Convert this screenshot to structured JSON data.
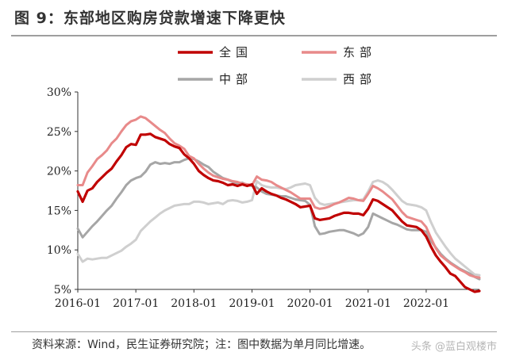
{
  "header": {
    "title": "图 9：东部地区购房贷款增速下降更快"
  },
  "footer": {
    "source": "资料来源：Wind，民生证券研究院；注：图中数据为单月同比增速。",
    "watermark": "头条 @蓝白观楼市"
  },
  "colors": {
    "national": "#c00000",
    "east": "#e88a8a",
    "central": "#a6a6a6",
    "west": "#cfcfcf"
  },
  "chart_data": {
    "type": "line",
    "title": "",
    "xlabel": "",
    "ylabel": "",
    "ylim": [
      5,
      30
    ],
    "yticks": [
      "5%",
      "10%",
      "15%",
      "20%",
      "25%",
      "30%"
    ],
    "xticks": [
      "2016-01",
      "2017-01",
      "2018-01",
      "2019-01",
      "2020-01",
      "2021-01",
      "2022-01"
    ],
    "x": [
      "2016-01",
      "2016-02",
      "2016-03",
      "2016-04",
      "2016-05",
      "2016-06",
      "2016-07",
      "2016-08",
      "2016-09",
      "2016-10",
      "2016-11",
      "2016-12",
      "2017-01",
      "2017-02",
      "2017-03",
      "2017-04",
      "2017-05",
      "2017-06",
      "2017-07",
      "2017-08",
      "2017-09",
      "2017-10",
      "2017-11",
      "2017-12",
      "2018-01",
      "2018-02",
      "2018-03",
      "2018-04",
      "2018-05",
      "2018-06",
      "2018-07",
      "2018-08",
      "2018-09",
      "2018-10",
      "2018-11",
      "2018-12",
      "2019-01",
      "2019-02",
      "2019-03",
      "2019-04",
      "2019-05",
      "2019-06",
      "2019-07",
      "2019-08",
      "2019-09",
      "2019-10",
      "2019-11",
      "2019-12",
      "2020-01",
      "2020-02",
      "2020-03",
      "2020-04",
      "2020-05",
      "2020-06",
      "2020-07",
      "2020-08",
      "2020-09",
      "2020-10",
      "2020-11",
      "2020-12",
      "2021-01",
      "2021-02",
      "2021-03",
      "2021-04",
      "2021-05",
      "2021-06",
      "2021-07",
      "2021-08",
      "2021-09",
      "2021-10",
      "2021-11",
      "2021-12",
      "2022-01",
      "2022-02",
      "2022-03",
      "2022-04",
      "2022-05",
      "2022-06",
      "2022-07",
      "2022-08",
      "2022-09",
      "2022-10",
      "2022-11",
      "2022-12"
    ],
    "legend_position": "top",
    "series": [
      {
        "name": "全国",
        "key": "national",
        "values": [
          17.4,
          16.1,
          17.5,
          17.8,
          18.6,
          19.2,
          19.8,
          20.3,
          21.2,
          22.0,
          23.0,
          23.4,
          23.3,
          24.6,
          24.6,
          24.7,
          24.3,
          24.1,
          23.9,
          23.4,
          23.1,
          22.9,
          22.1,
          21.6,
          20.9,
          20.0,
          19.5,
          19.1,
          18.8,
          18.7,
          18.5,
          18.2,
          18.3,
          18.1,
          18.3,
          18.1,
          18.3,
          17.1,
          17.8,
          17.4,
          17.1,
          16.9,
          16.6,
          16.4,
          16.1,
          15.8,
          15.4,
          15.5,
          15.6,
          14.0,
          13.8,
          13.9,
          14.0,
          14.3,
          14.5,
          14.7,
          14.7,
          14.6,
          14.6,
          14.4,
          15.2,
          16.4,
          16.2,
          15.8,
          15.4,
          15.0,
          14.3,
          13.6,
          13.1,
          13.0,
          12.9,
          12.5,
          11.7,
          10.4,
          9.3,
          8.5,
          7.8,
          7.0,
          6.7,
          6.0,
          5.3,
          5.0,
          4.7,
          4.8
        ]
      },
      {
        "name": "东部",
        "key": "east",
        "values": [
          18.2,
          18.2,
          19.8,
          20.6,
          21.5,
          22.0,
          22.6,
          23.5,
          24.1,
          25.0,
          25.8,
          26.3,
          26.5,
          26.9,
          26.7,
          26.2,
          25.7,
          25.2,
          24.8,
          24.1,
          23.5,
          23.2,
          22.8,
          21.9,
          21.6,
          20.9,
          20.3,
          19.8,
          19.4,
          19.2,
          19.0,
          18.9,
          18.7,
          18.6,
          18.4,
          18.3,
          18.2,
          19.3,
          18.9,
          18.8,
          18.6,
          18.2,
          17.9,
          17.6,
          17.3,
          16.9,
          16.5,
          16.5,
          16.5,
          15.4,
          15.2,
          15.3,
          15.5,
          15.8,
          16.0,
          16.3,
          16.6,
          16.5,
          16.3,
          16.2,
          17.1,
          18.1,
          17.8,
          17.4,
          16.9,
          16.4,
          15.6,
          14.8,
          14.2,
          14.0,
          13.8,
          13.6,
          12.9,
          11.5,
          10.2,
          9.3,
          8.8,
          8.3,
          7.9,
          7.5,
          7.2,
          6.8,
          6.6,
          6.5
        ]
      },
      {
        "name": "中部",
        "key": "central",
        "values": [
          12.7,
          11.6,
          12.3,
          13.0,
          13.6,
          14.3,
          15.0,
          15.6,
          16.5,
          17.3,
          18.2,
          18.8,
          19.1,
          19.3,
          19.9,
          20.8,
          21.1,
          20.9,
          21.0,
          20.9,
          21.1,
          21.1,
          21.4,
          21.6,
          21.5,
          21.2,
          20.8,
          20.5,
          19.9,
          19.5,
          19.1,
          18.9,
          18.6,
          18.4,
          18.5,
          18.2,
          18.1,
          17.9,
          17.4,
          17.1,
          17.0,
          16.9,
          16.8,
          16.8,
          16.6,
          16.4,
          16.3,
          16.2,
          15.7,
          13.0,
          12.0,
          12.1,
          12.3,
          12.4,
          12.5,
          12.5,
          12.3,
          12.1,
          11.8,
          12.1,
          12.9,
          14.6,
          14.3,
          14.0,
          13.7,
          13.4,
          13.2,
          12.9,
          12.6,
          12.5,
          12.5,
          12.5,
          12.3,
          11.1,
          10.3,
          9.5,
          8.9,
          8.4,
          8.0,
          7.6,
          7.3,
          7.0,
          6.6,
          6.3
        ]
      },
      {
        "name": "西部",
        "key": "west",
        "values": [
          9.5,
          8.5,
          8.9,
          8.8,
          8.9,
          9.0,
          9.0,
          9.3,
          9.6,
          9.9,
          10.4,
          10.8,
          11.3,
          12.4,
          13.0,
          13.6,
          14.1,
          14.6,
          15.0,
          15.3,
          15.6,
          15.7,
          15.8,
          15.8,
          16.1,
          16.1,
          16.0,
          15.8,
          15.9,
          16.0,
          15.8,
          16.2,
          16.3,
          16.2,
          16.0,
          16.1,
          16.3,
          18.7,
          18.2,
          18.0,
          17.9,
          17.9,
          17.8,
          17.7,
          17.9,
          18.2,
          18.3,
          18.4,
          18.2,
          16.6,
          15.9,
          15.7,
          15.8,
          15.9,
          16.0,
          16.1,
          16.2,
          16.3,
          16.3,
          16.4,
          17.4,
          18.6,
          18.8,
          18.6,
          18.2,
          17.6,
          16.9,
          16.2,
          15.8,
          15.7,
          15.6,
          15.4,
          15.0,
          13.5,
          12.2,
          11.3,
          10.4,
          9.6,
          8.9,
          8.4,
          7.9,
          7.4,
          6.9,
          6.8
        ]
      }
    ]
  }
}
